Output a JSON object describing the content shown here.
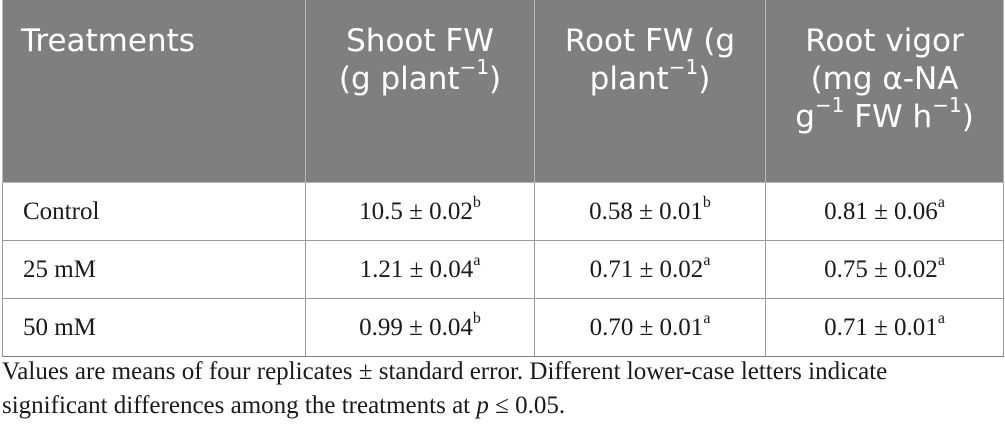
{
  "table": {
    "headers": [
      {
        "lines": [
          "Treatments"
        ]
      },
      {
        "lines": [
          "Shoot FW",
          "(g plant",
          ")"
        ],
        "sup": "−1"
      },
      {
        "lines": [
          "Root FW (g",
          "plant",
          ")"
        ],
        "sup": "−1"
      },
      {
        "lines": [
          "Root vigor",
          "(mg α-NA",
          "g",
          " FW h",
          ")"
        ],
        "sup": "−1"
      }
    ],
    "rows": [
      {
        "treatment": "Control",
        "shoot_fw": "10.5 ± 0.02",
        "shoot_fw_sig": "b",
        "root_fw": "0.58 ± 0.01",
        "root_fw_sig": "b",
        "root_vigor": "0.81 ± 0.06",
        "root_vigor_sig": "a"
      },
      {
        "treatment": "25 mM",
        "shoot_fw": "1.21 ± 0.04",
        "shoot_fw_sig": "a",
        "root_fw": "0.71 ± 0.02",
        "root_fw_sig": "a",
        "root_vigor": "0.75 ± 0.02",
        "root_vigor_sig": "a"
      },
      {
        "treatment": "50 mM",
        "shoot_fw": "0.99 ± 0.04",
        "shoot_fw_sig": "b",
        "root_fw": "0.70 ± 0.01",
        "root_fw_sig": "a",
        "root_vigor": "0.71 ± 0.01",
        "root_vigor_sig": "a"
      }
    ]
  },
  "footnote": {
    "line1": "Values are means of four replicates ± standard error. Different lower-case letters indicate",
    "line2_pre": "significant differences among the treatments at ",
    "line2_var": "p",
    "line2_post": " ≤ 0.05."
  },
  "colors": {
    "header_bg": "#7f7f7f",
    "header_text": "#ffffff",
    "border": "#9a9a9a"
  }
}
